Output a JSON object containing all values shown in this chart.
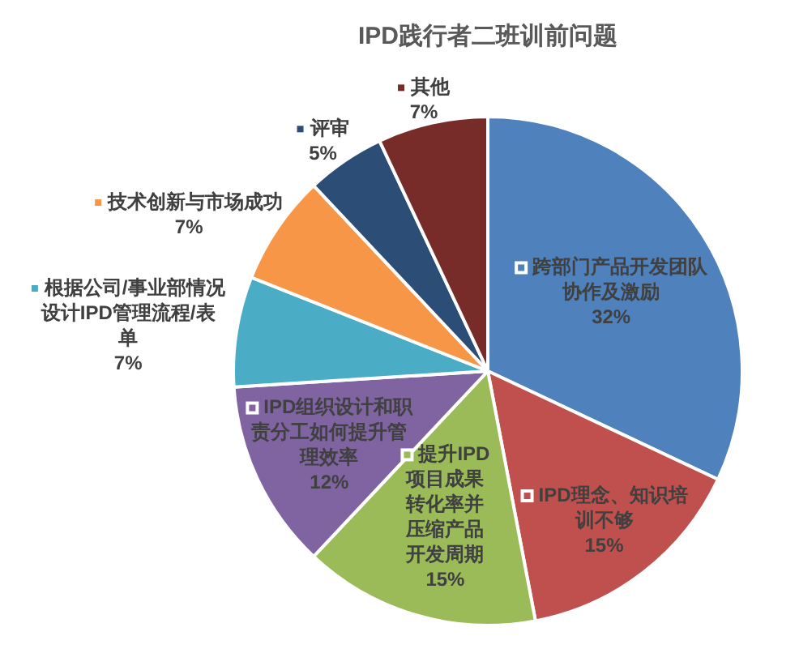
{
  "chart_data": {
    "type": "pie",
    "title": "IPD践行者二班训前问题",
    "categories": [
      "跨部门产品开发团队协作及激励",
      "IPD理念、知识培训不够",
      "提升IPD项目成果转化率并压缩产品开发周期",
      "IPD组织设计和职责分工如何提升管理效率",
      "根据公司/事业部情况设计IPD管理流程/表单",
      "技术创新与市场成功",
      "评审",
      "其他"
    ],
    "values": [
      32,
      15,
      15,
      12,
      7,
      7,
      5,
      7
    ],
    "colors": [
      "#4f81bd",
      "#c0504d",
      "#9bbb59",
      "#8064a2",
      "#4bacc6",
      "#f79646",
      "#2c4d75",
      "#772c2a"
    ],
    "value_labels": [
      "32%",
      "15%",
      "15%",
      "12%",
      "7%",
      "7%",
      "5%",
      "7%"
    ],
    "legend": "left"
  }
}
